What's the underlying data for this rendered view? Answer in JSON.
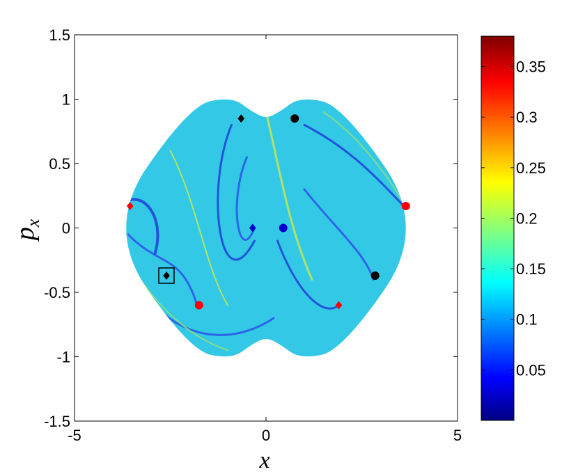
{
  "chart_data": {
    "type": "scatter",
    "xlabel": "x",
    "ylabel": "p",
    "ylabel_sub": "x",
    "xlim": [
      -5,
      5
    ],
    "ylim": [
      -1.5,
      1.5
    ],
    "x_ticks": [
      -5,
      0,
      5
    ],
    "x_tick_labels": [
      "-5",
      "0",
      "5"
    ],
    "y_ticks": [
      1.5,
      1,
      0.5,
      0,
      -0.5,
      -1,
      -1.5
    ],
    "y_tick_labels": [
      "1.5",
      "1",
      "0.5",
      "0",
      "-0.5",
      "-1",
      "-1.5"
    ],
    "grid": false,
    "colorbar": {
      "range": [
        0,
        0.38
      ],
      "ticks": [
        0.05,
        0.1,
        0.15,
        0.2,
        0.25,
        0.3,
        0.35
      ],
      "tick_labels": [
        "0.05",
        "0.1",
        "0.15",
        "0.2",
        "0.25",
        "0.3",
        "0.35"
      ],
      "colormap": "jet"
    },
    "background_field": {
      "description_value": 0.15,
      "region": "diamond-shaped chaotic sea",
      "x_extent": [
        -4.2,
        4.2
      ],
      "p_extent": [
        -1.0,
        1.0
      ]
    },
    "markers": [
      {
        "x": -0.65,
        "y": 0.85,
        "shape": "diamond",
        "color": "#000000"
      },
      {
        "x": 0.75,
        "y": 0.85,
        "shape": "circle",
        "color": "#000000"
      },
      {
        "x": -3.55,
        "y": 0.17,
        "shape": "diamond",
        "color": "#ff0000"
      },
      {
        "x": 3.65,
        "y": 0.17,
        "shape": "circle",
        "color": "#ff0000"
      },
      {
        "x": -0.35,
        "y": 0.0,
        "shape": "diamond",
        "color": "#0000cc"
      },
      {
        "x": 0.45,
        "y": 0.0,
        "shape": "circle",
        "color": "#0000cc"
      },
      {
        "x": -2.6,
        "y": -0.37,
        "shape": "diamond",
        "color": "#000000",
        "boxed": true
      },
      {
        "x": 2.85,
        "y": -0.37,
        "shape": "circle",
        "color": "#000000"
      },
      {
        "x": -1.75,
        "y": -0.6,
        "shape": "circle",
        "color": "#ff0000"
      },
      {
        "x": 1.9,
        "y": -0.6,
        "shape": "diamond",
        "color": "#ff0000"
      }
    ]
  }
}
